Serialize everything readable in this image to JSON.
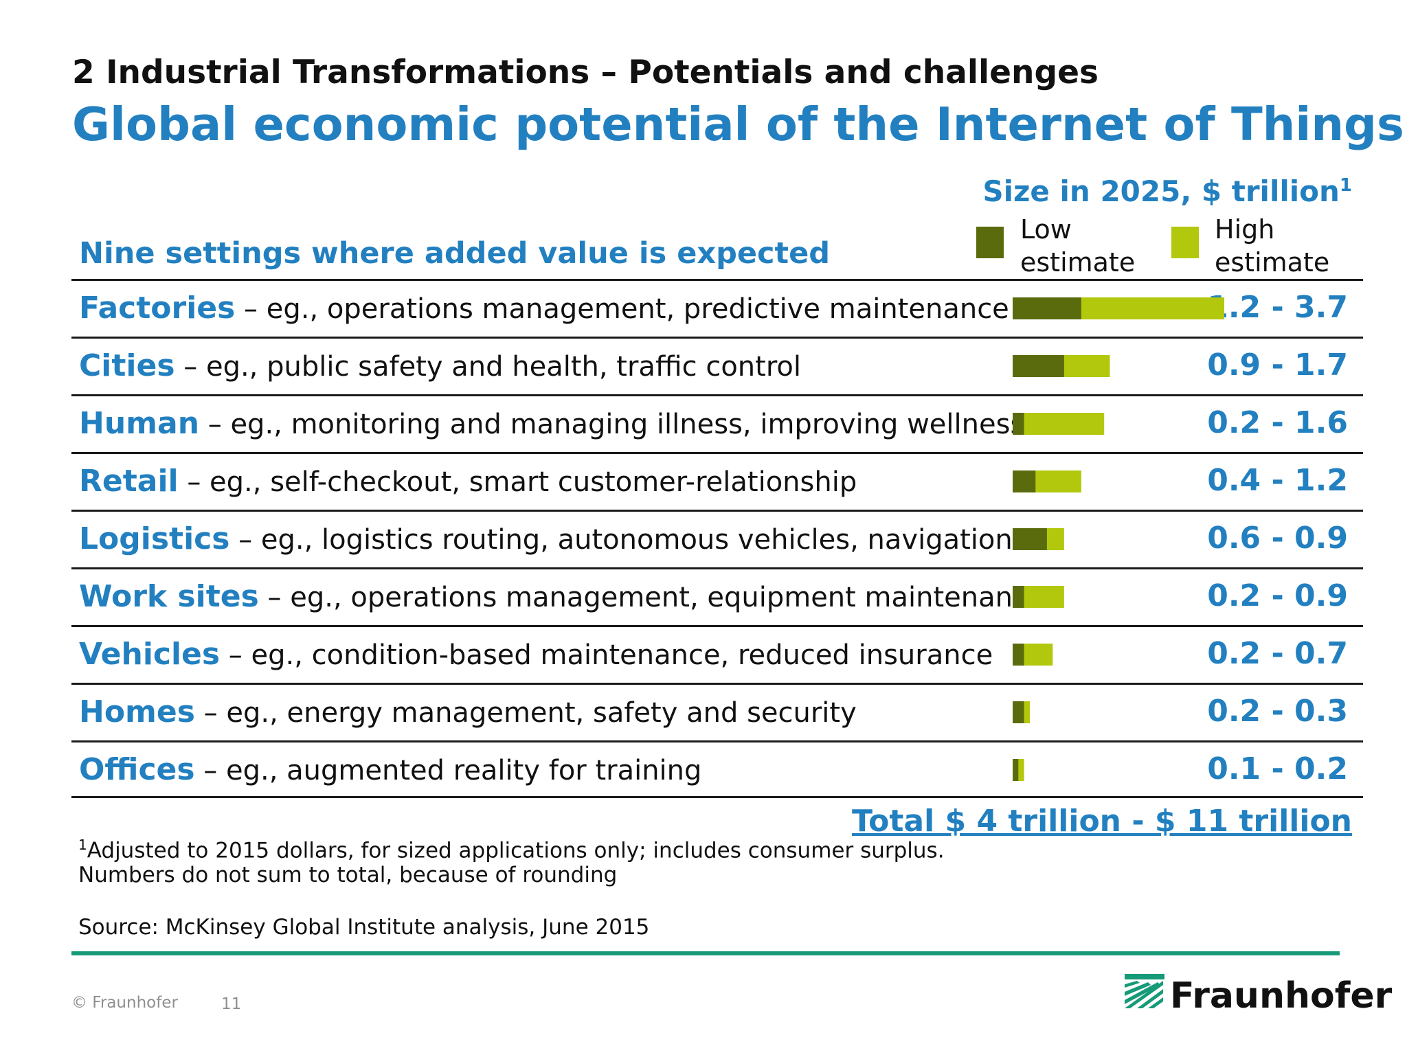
{
  "header": {
    "section": "2 Industrial Transformations – Potentials and challenges",
    "title": "Global economic potential of the Internet of Things"
  },
  "size_header": {
    "text": "Size in 2025, $ trillion",
    "footnote_marker": "1"
  },
  "legend": {
    "low": {
      "line1": "Low",
      "line2": "estimate",
      "color": "#5a6b0e"
    },
    "high": {
      "line1": "High",
      "line2": "estimate",
      "color": "#b2c80c"
    }
  },
  "column_header": "Nine settings where added value is expected",
  "rows": [
    {
      "name": "Factories",
      "desc": " – eg., operations management, predictive maintenance",
      "range": "1.2 - 3.7"
    },
    {
      "name": "Cities",
      "desc": " – eg., public safety and health, traffic control",
      "range": "0.9 - 1.7"
    },
    {
      "name": "Human",
      "desc": " – eg., monitoring and managing illness, improving wellness",
      "range": "0.2 - 1.6"
    },
    {
      "name": "Retail",
      "desc": " – eg., self-checkout, smart customer-relationship",
      "range": "0.4 - 1.2"
    },
    {
      "name": "Logistics",
      "desc": " – eg., logistics routing, autonomous vehicles, navigation",
      "range": "0.6 - 0.9"
    },
    {
      "name": "Work sites",
      "desc": " – eg., operations management, equipment maintenance",
      "range": "0.2 - 0.9"
    },
    {
      "name": "Vehicles",
      "desc": " – eg., condition-based maintenance, reduced insurance",
      "range": "0.2 - 0.7"
    },
    {
      "name": "Homes",
      "desc": " – eg., energy management, safety and security",
      "range": "0.2 - 0.3"
    },
    {
      "name": "Offices",
      "desc": " – eg., augmented reality for training",
      "range": "0.1 - 0.2"
    }
  ],
  "total": "Total $ 4 trillion - $ 11 trillion",
  "notes": {
    "footnote_marker": "1",
    "line1": "Adjusted to 2015 dollars, for sized applications only; includes consumer surplus.",
    "line2": "Numbers do not sum to total, because of rounding",
    "source": "Source: McKinsey Global Institute analysis, June 2015"
  },
  "footer": {
    "copyright": "© Fraunhofer",
    "page": "11",
    "logo": "Fraunhofer"
  },
  "colors": {
    "accent": "#2380c0",
    "rule": "#169a78",
    "low": "#5a6b0e",
    "high": "#b2c80c"
  },
  "chart_data": {
    "type": "bar",
    "orientation": "horizontal",
    "stacked_range": true,
    "title": "Size in 2025, $ trillion",
    "categories": [
      "Factories",
      "Cities",
      "Human",
      "Retail",
      "Logistics",
      "Work sites",
      "Vehicles",
      "Homes",
      "Offices"
    ],
    "series": [
      {
        "name": "Low estimate",
        "values": [
          1.2,
          0.9,
          0.2,
          0.4,
          0.6,
          0.2,
          0.2,
          0.2,
          0.1
        ]
      },
      {
        "name": "High estimate",
        "values": [
          3.7,
          1.7,
          1.6,
          1.2,
          0.9,
          0.9,
          0.7,
          0.3,
          0.2
        ]
      }
    ],
    "xlim": [
      0,
      3.7
    ],
    "grid": false,
    "legend": "top"
  }
}
